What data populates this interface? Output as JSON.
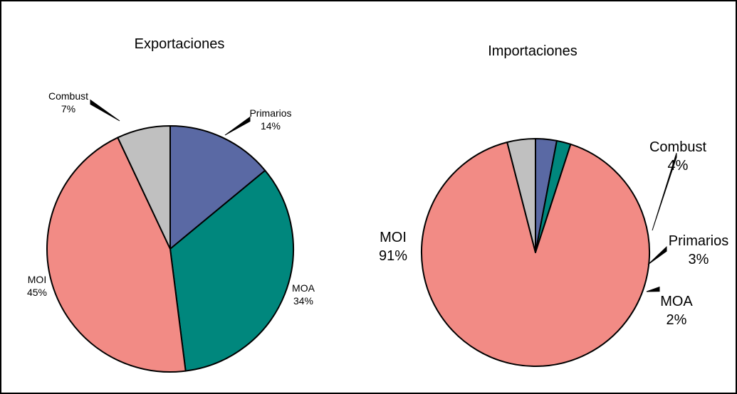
{
  "chart_data": [
    {
      "type": "pie",
      "title": "Exportaciones",
      "slices": [
        {
          "label": "Primarios",
          "pct_label": "14%",
          "value": 14,
          "color": "#5a69a4"
        },
        {
          "label": "MOA",
          "pct_label": "34%",
          "value": 34,
          "color": "#00877d"
        },
        {
          "label": "MOI",
          "pct_label": "45%",
          "value": 45,
          "color": "#f28b85"
        },
        {
          "label": "Combust",
          "pct_label": "7%",
          "value": 7,
          "color": "#c0c0c0"
        }
      ]
    },
    {
      "type": "pie",
      "title": "Importaciones",
      "slices": [
        {
          "label": "Primarios",
          "pct_label": "3%",
          "value": 3,
          "color": "#5a69a4"
        },
        {
          "label": "MOA",
          "pct_label": "2%",
          "value": 2,
          "color": "#00877d"
        },
        {
          "label": "MOI",
          "pct_label": "91%",
          "value": 91,
          "color": "#f28b85"
        },
        {
          "label": "Combust",
          "pct_label": "4%",
          "value": 4,
          "color": "#c0c0c0"
        }
      ]
    }
  ]
}
